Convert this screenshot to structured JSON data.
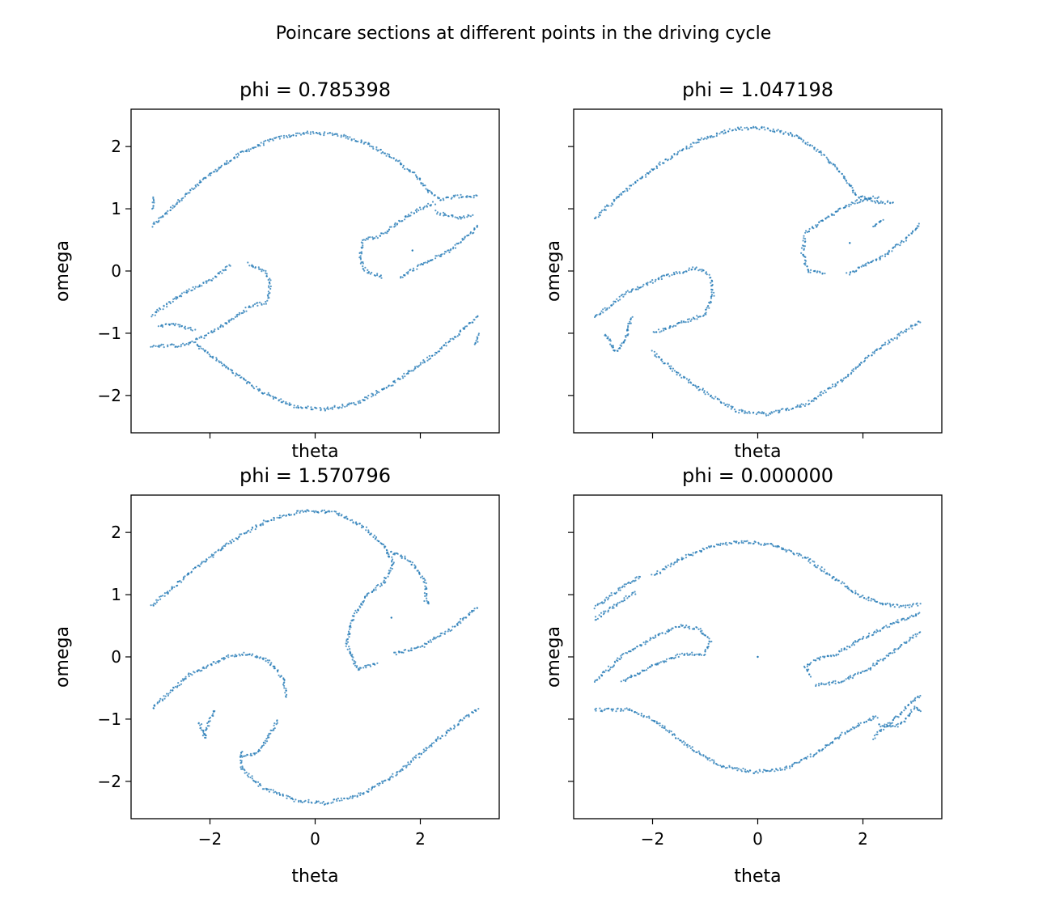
{
  "figure": {
    "title": "Poincare sections at different points in the driving cycle"
  },
  "chart_data": [
    {
      "type": "scatter",
      "title": "phi = 0.785398",
      "xlabel": "theta",
      "ylabel": "omega",
      "xlim": [
        -3.5,
        3.5
      ],
      "ylim": [
        -2.6,
        2.6
      ],
      "xticks": [
        -2,
        0,
        2
      ],
      "yticks": [
        -2,
        -1,
        0,
        1,
        2
      ],
      "xtick_labels_visible": false,
      "ytick_labels_visible": true,
      "color": "#1f77b4",
      "curves": [
        [
          [
            -3.1,
            0.72
          ],
          [
            -2.6,
            1.12
          ],
          [
            -2.0,
            1.55
          ],
          [
            -1.4,
            1.9
          ],
          [
            -0.8,
            2.12
          ],
          [
            -0.2,
            2.22
          ],
          [
            0.4,
            2.2
          ],
          [
            1.0,
            2.05
          ],
          [
            1.5,
            1.8
          ],
          [
            1.9,
            1.55
          ],
          [
            2.2,
            1.25
          ],
          [
            2.4,
            1.15
          ],
          [
            2.7,
            1.2
          ],
          [
            3.1,
            1.2
          ]
        ],
        [
          [
            3.1,
            0.72
          ],
          [
            2.6,
            0.35
          ],
          [
            2.0,
            0.1
          ],
          [
            1.6,
            -0.12
          ]
        ],
        [
          [
            -3.1,
            -0.72
          ],
          [
            -2.6,
            -0.4
          ],
          [
            -2.0,
            -0.15
          ],
          [
            -1.6,
            0.1
          ]
        ],
        [
          [
            -3.1,
            -1.2
          ],
          [
            -2.6,
            -1.2
          ],
          [
            -2.3,
            -1.15
          ],
          [
            -2.0,
            -1.35
          ],
          [
            -1.6,
            -1.6
          ],
          [
            -1.0,
            -1.95
          ],
          [
            -0.4,
            -2.18
          ],
          [
            0.2,
            -2.22
          ],
          [
            0.8,
            -2.12
          ],
          [
            1.4,
            -1.85
          ],
          [
            2.0,
            -1.5
          ],
          [
            2.6,
            -1.1
          ],
          [
            3.1,
            -0.72
          ]
        ],
        [
          [
            0.9,
            0.5
          ],
          [
            1.2,
            0.55
          ],
          [
            1.7,
            0.85
          ],
          [
            2.1,
            1.05
          ],
          [
            2.3,
            1.1
          ]
        ],
        [
          [
            0.9,
            0.45
          ],
          [
            0.85,
            0.2
          ],
          [
            0.95,
            0.0
          ],
          [
            1.3,
            -0.1
          ]
        ],
        [
          [
            2.3,
            0.95
          ],
          [
            2.7,
            0.85
          ],
          [
            3.0,
            0.9
          ]
        ],
        [
          [
            -0.9,
            -0.5
          ],
          [
            -1.2,
            -0.55
          ],
          [
            -1.7,
            -0.85
          ],
          [
            -2.1,
            -1.05
          ],
          [
            -2.3,
            -1.1
          ]
        ],
        [
          [
            -0.9,
            -0.45
          ],
          [
            -0.85,
            -0.2
          ],
          [
            -0.95,
            0.0
          ],
          [
            -1.3,
            0.12
          ]
        ],
        [
          [
            -2.3,
            -0.95
          ],
          [
            -2.7,
            -0.85
          ],
          [
            -3.0,
            -0.9
          ]
        ],
        [
          [
            -3.1,
            1.0
          ],
          [
            -3.05,
            1.2
          ]
        ],
        [
          [
            3.1,
            -1.0
          ],
          [
            3.05,
            -1.2
          ]
        ]
      ],
      "points": [
        [
          1.85,
          0.33
        ]
      ]
    },
    {
      "type": "scatter",
      "title": "phi = 1.047198",
      "xlabel": "theta",
      "ylabel": "omega",
      "xlim": [
        -3.5,
        3.5
      ],
      "ylim": [
        -2.6,
        2.6
      ],
      "xticks": [
        -2,
        0,
        2
      ],
      "yticks": [
        -2,
        -1,
        0,
        1,
        2
      ],
      "xtick_labels_visible": false,
      "ytick_labels_visible": false,
      "color": "#1f77b4",
      "curves": [
        [
          [
            -3.1,
            0.85
          ],
          [
            -2.5,
            1.3
          ],
          [
            -1.8,
            1.75
          ],
          [
            -1.1,
            2.1
          ],
          [
            -0.5,
            2.28
          ],
          [
            0.1,
            2.3
          ],
          [
            0.7,
            2.18
          ],
          [
            1.2,
            1.9
          ],
          [
            1.6,
            1.55
          ],
          [
            1.9,
            1.2
          ],
          [
            2.3,
            1.1
          ],
          [
            2.6,
            1.1
          ]
        ],
        [
          [
            0.9,
            0.6
          ],
          [
            1.3,
            0.85
          ],
          [
            1.8,
            1.1
          ],
          [
            2.3,
            1.2
          ]
        ],
        [
          [
            0.9,
            0.55
          ],
          [
            0.85,
            0.3
          ],
          [
            0.95,
            0.0
          ],
          [
            1.3,
            -0.05
          ]
        ],
        [
          [
            1.7,
            -0.05
          ],
          [
            2.3,
            0.2
          ],
          [
            2.8,
            0.5
          ],
          [
            3.1,
            0.75
          ]
        ],
        [
          [
            -3.1,
            -0.75
          ],
          [
            -2.5,
            -0.35
          ],
          [
            -1.8,
            -0.1
          ],
          [
            -1.2,
            0.05
          ],
          [
            -0.9,
            -0.05
          ]
        ],
        [
          [
            -0.9,
            -0.1
          ],
          [
            -0.85,
            -0.4
          ],
          [
            -1.0,
            -0.7
          ],
          [
            -1.5,
            -0.85
          ],
          [
            -2.0,
            -1.0
          ]
        ],
        [
          [
            -2.0,
            -1.3
          ],
          [
            -1.6,
            -1.6
          ],
          [
            -1.0,
            -1.95
          ],
          [
            -0.4,
            -2.25
          ],
          [
            0.2,
            -2.3
          ],
          [
            0.9,
            -2.15
          ],
          [
            1.6,
            -1.75
          ],
          [
            2.3,
            -1.25
          ],
          [
            3.1,
            -0.8
          ]
        ],
        [
          [
            -2.9,
            -1.0
          ],
          [
            -2.7,
            -1.3
          ],
          [
            -2.5,
            -1.1
          ],
          [
            -2.4,
            -0.7
          ]
        ],
        [
          [
            2.2,
            0.7
          ],
          [
            2.4,
            0.85
          ]
        ]
      ],
      "points": [
        [
          1.75,
          0.45
        ]
      ]
    },
    {
      "type": "scatter",
      "title": "phi = 1.570796",
      "xlabel": "theta",
      "ylabel": "omega",
      "xlim": [
        -3.5,
        3.5
      ],
      "ylim": [
        -2.6,
        2.6
      ],
      "xticks": [
        -2,
        0,
        2
      ],
      "yticks": [
        -2,
        -1,
        0,
        1,
        2
      ],
      "xtick_labels_visible": true,
      "ytick_labels_visible": true,
      "color": "#1f77b4",
      "curves": [
        [
          [
            -3.1,
            0.82
          ],
          [
            -2.4,
            1.35
          ],
          [
            -1.6,
            1.85
          ],
          [
            -0.9,
            2.2
          ],
          [
            -0.2,
            2.35
          ],
          [
            0.4,
            2.32
          ],
          [
            0.9,
            2.1
          ],
          [
            1.3,
            1.8
          ],
          [
            1.5,
            1.5
          ],
          [
            1.3,
            1.2
          ],
          [
            1.0,
            1.0
          ],
          [
            0.7,
            0.6
          ],
          [
            0.6,
            0.2
          ],
          [
            0.8,
            -0.2
          ],
          [
            1.2,
            -0.1
          ]
        ],
        [
          [
            1.4,
            1.7
          ],
          [
            1.8,
            1.55
          ],
          [
            2.1,
            1.2
          ],
          [
            2.1,
            0.9
          ],
          [
            2.2,
            0.85
          ]
        ],
        [
          [
            1.5,
            0.05
          ],
          [
            2.0,
            0.15
          ],
          [
            2.6,
            0.45
          ],
          [
            3.1,
            0.82
          ]
        ],
        [
          [
            -3.1,
            -0.82
          ],
          [
            -2.4,
            -0.3
          ],
          [
            -1.7,
            0.0
          ],
          [
            -1.3,
            0.05
          ],
          [
            -0.9,
            -0.05
          ],
          [
            -0.6,
            -0.35
          ],
          [
            -0.55,
            -0.65
          ]
        ],
        [
          [
            -2.2,
            -1.05
          ],
          [
            -2.1,
            -1.3
          ],
          [
            -2.0,
            -1.0
          ],
          [
            -1.9,
            -0.85
          ]
        ],
        [
          [
            -1.4,
            -1.5
          ],
          [
            -1.4,
            -1.8
          ],
          [
            -1.0,
            -2.1
          ],
          [
            -0.4,
            -2.3
          ],
          [
            0.2,
            -2.35
          ],
          [
            0.9,
            -2.2
          ],
          [
            1.6,
            -1.85
          ],
          [
            2.3,
            -1.35
          ],
          [
            3.1,
            -0.82
          ]
        ],
        [
          [
            -1.4,
            -1.6
          ],
          [
            -1.1,
            -1.55
          ],
          [
            -0.9,
            -1.3
          ],
          [
            -0.7,
            -1.0
          ]
        ]
      ],
      "points": [
        [
          1.45,
          0.63
        ]
      ]
    },
    {
      "type": "scatter",
      "title": "phi = 0.000000",
      "xlabel": "theta",
      "ylabel": "omega",
      "xlim": [
        -3.5,
        3.5
      ],
      "ylim": [
        -2.6,
        2.6
      ],
      "xticks": [
        -2,
        0,
        2
      ],
      "yticks": [
        -2,
        -1,
        0,
        1,
        2
      ],
      "xtick_labels_visible": true,
      "ytick_labels_visible": false,
      "color": "#1f77b4",
      "curves": [
        [
          [
            -2.0,
            1.3
          ],
          [
            -1.4,
            1.6
          ],
          [
            -0.8,
            1.8
          ],
          [
            -0.3,
            1.85
          ],
          [
            0.3,
            1.8
          ],
          [
            0.9,
            1.6
          ],
          [
            1.4,
            1.3
          ],
          [
            1.9,
            1.0
          ],
          [
            2.4,
            0.85
          ],
          [
            2.8,
            0.8
          ],
          [
            3.1,
            0.85
          ]
        ],
        [
          [
            -3.1,
            0.8
          ],
          [
            -2.6,
            1.1
          ],
          [
            -2.2,
            1.3
          ]
        ],
        [
          [
            -3.1,
            0.6
          ],
          [
            -2.6,
            0.9
          ],
          [
            -2.3,
            1.05
          ]
        ],
        [
          [
            -3.1,
            -0.4
          ],
          [
            -2.6,
            0.0
          ],
          [
            -2.0,
            0.3
          ],
          [
            -1.5,
            0.5
          ],
          [
            -1.1,
            0.45
          ],
          [
            -0.9,
            0.25
          ],
          [
            -1.0,
            0.05
          ],
          [
            -1.4,
            0.05
          ],
          [
            -1.9,
            -0.1
          ],
          [
            -2.6,
            -0.4
          ]
        ],
        [
          [
            -3.1,
            -0.85
          ],
          [
            -2.4,
            -0.85
          ],
          [
            -1.9,
            -1.05
          ],
          [
            -1.3,
            -1.45
          ],
          [
            -0.7,
            -1.75
          ],
          [
            -0.1,
            -1.85
          ],
          [
            0.5,
            -1.8
          ],
          [
            1.1,
            -1.55
          ],
          [
            1.6,
            -1.25
          ],
          [
            2.0,
            -1.05
          ],
          [
            2.3,
            -0.95
          ]
        ],
        [
          [
            1.0,
            -0.3
          ],
          [
            0.9,
            -0.15
          ],
          [
            1.1,
            -0.05
          ],
          [
            1.5,
            0.05
          ],
          [
            2.0,
            0.3
          ],
          [
            2.6,
            0.55
          ],
          [
            3.1,
            0.7
          ]
        ],
        [
          [
            1.1,
            -0.45
          ],
          [
            1.6,
            -0.4
          ],
          [
            2.1,
            -0.2
          ],
          [
            2.6,
            0.1
          ],
          [
            3.1,
            0.4
          ]
        ],
        [
          [
            2.2,
            -1.3
          ],
          [
            2.6,
            -1.0
          ],
          [
            3.1,
            -0.6
          ]
        ],
        [
          [
            2.3,
            -1.1
          ],
          [
            2.7,
            -1.1
          ],
          [
            3.0,
            -0.8
          ],
          [
            3.1,
            -0.9
          ]
        ]
      ],
      "points": [
        [
          0.0,
          0.0
        ]
      ]
    }
  ]
}
